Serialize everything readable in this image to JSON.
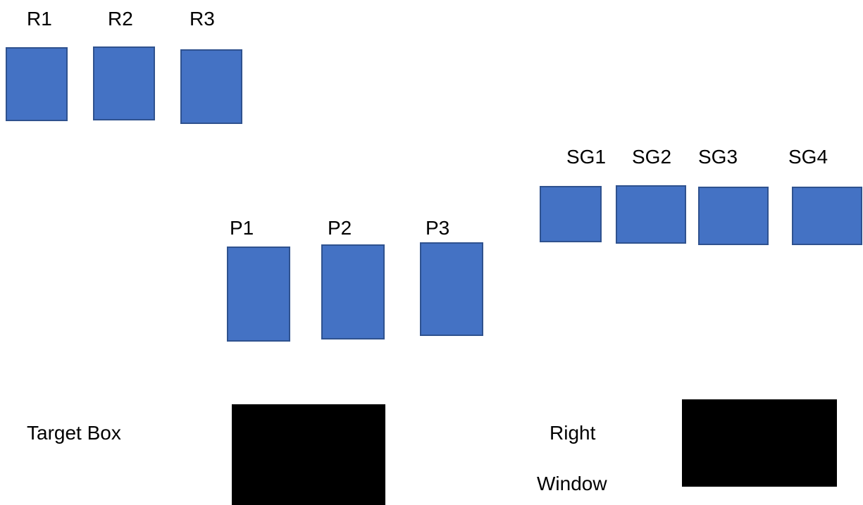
{
  "colors": {
    "box_fill": "#4472C4",
    "box_border": "#2F528F",
    "block_fill": "#000000"
  },
  "groups": {
    "r": {
      "labels": [
        "R1",
        "R2",
        "R3"
      ]
    },
    "sg": {
      "labels": [
        "SG1",
        "SG2",
        "SG3",
        "SG4"
      ]
    },
    "p": {
      "labels": [
        "P1",
        "P2",
        "P3"
      ]
    }
  },
  "target": {
    "label": "Target Box"
  },
  "right_window": {
    "line1": "Right",
    "line2": "Window"
  }
}
